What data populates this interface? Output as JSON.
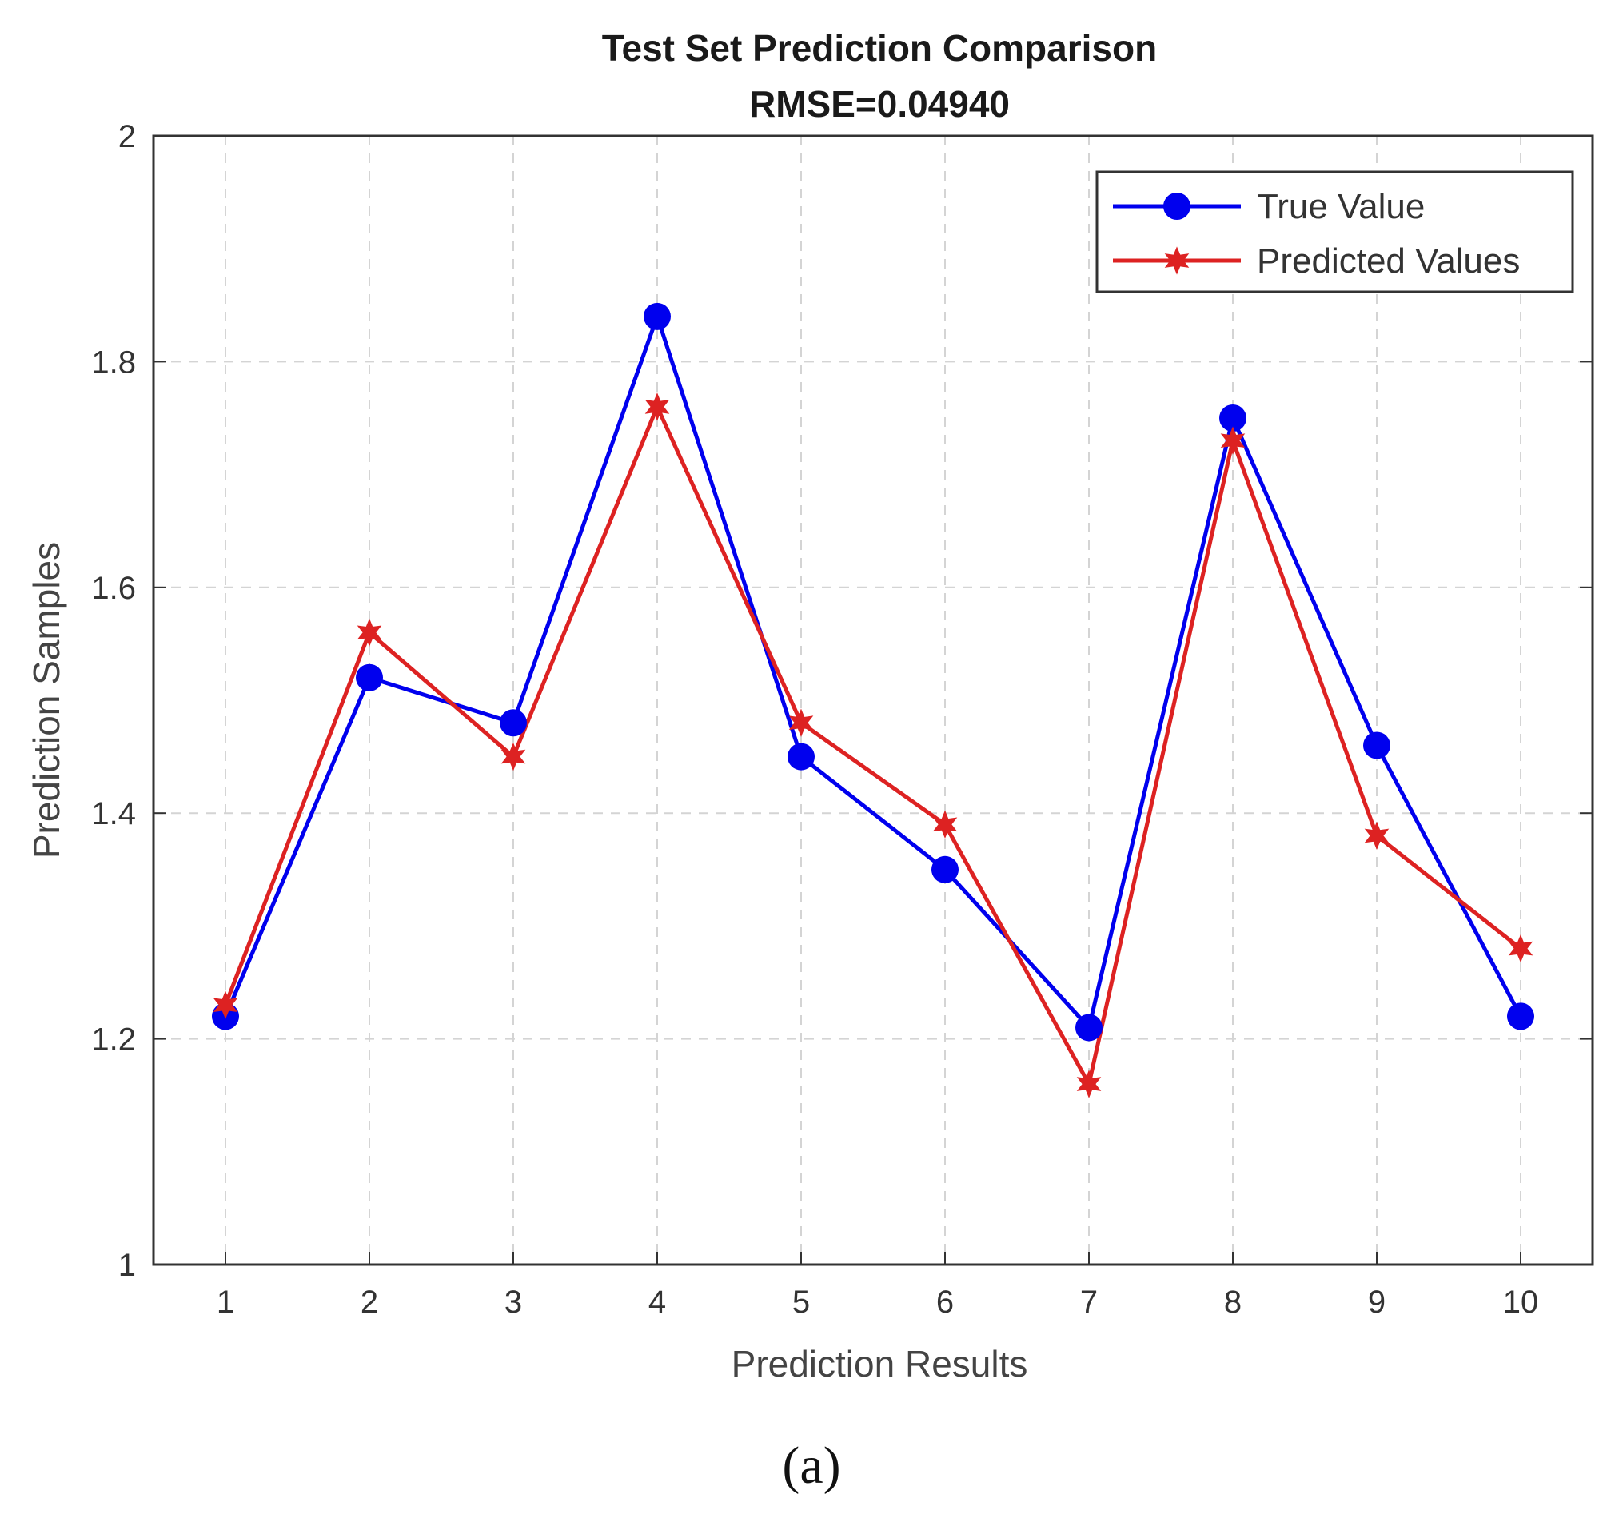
{
  "chart_data": {
    "type": "line",
    "title": "Test Set Prediction Comparison",
    "subtitle": "RMSE=0.04940",
    "xlabel": "Prediction Results",
    "ylabel": "Prediction Samples",
    "x": [
      1,
      2,
      3,
      4,
      5,
      6,
      7,
      8,
      9,
      10
    ],
    "xticks": [
      "1",
      "2",
      "3",
      "4",
      "5",
      "6",
      "7",
      "8",
      "9",
      "10"
    ],
    "yticks": [
      "1",
      "1.2",
      "1.4",
      "1.6",
      "1.8",
      "2"
    ],
    "ytick_values": [
      1,
      1.2,
      1.4,
      1.6,
      1.8,
      2
    ],
    "xlim": [
      0.5,
      10.5
    ],
    "ylim": [
      1,
      2
    ],
    "grid": true,
    "legend_position": "top-right",
    "series": [
      {
        "name": "True Value",
        "marker": "circle",
        "color": "#0000ee",
        "values": [
          1.22,
          1.52,
          1.48,
          1.84,
          1.45,
          1.35,
          1.21,
          1.75,
          1.46,
          1.22
        ]
      },
      {
        "name": "Predicted Values",
        "marker": "star",
        "color": "#dd2222",
        "values": [
          1.23,
          1.56,
          1.45,
          1.76,
          1.48,
          1.39,
          1.16,
          1.73,
          1.38,
          1.28
        ]
      }
    ]
  },
  "caption": "(a)"
}
